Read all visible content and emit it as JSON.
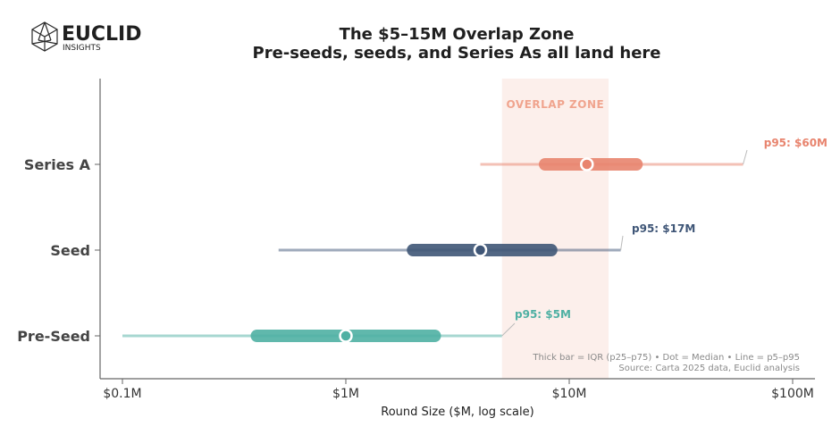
{
  "brand": {
    "name": "EUCLID",
    "tagline": "INSIGHTS"
  },
  "colors": {
    "series_a": "#e8846e",
    "seed": "#3f5677",
    "pre_seed": "#4fb0a3",
    "zone_fill": "#fcefeb",
    "zone_text": "#f0a48e",
    "axis": "#666666"
  },
  "chart_data": {
    "type": "range",
    "title": [
      "The $5–15M Overlap Zone",
      "Pre-seeds, seeds, and Series As all land here"
    ],
    "xlabel": "Round Size ($M, log scale)",
    "ylabel": "",
    "xscale": "log",
    "xlim": [
      0.08,
      115
    ],
    "x_ticks": [
      0.1,
      1,
      10,
      100
    ],
    "x_tick_labels": [
      "$0.1M",
      "$1M",
      "$10M",
      "$100M"
    ],
    "overlap_zone": {
      "range": [
        5,
        15
      ],
      "label": "OVERLAP ZONE"
    },
    "series": [
      {
        "name": "Series A",
        "p5": 4,
        "p25": 7.8,
        "median": 12,
        "p75": 20,
        "p95": 60,
        "p95_label": "p95: $60M",
        "color": "#e8846e"
      },
      {
        "name": "Seed",
        "p5": 0.5,
        "p25": 2,
        "median": 4,
        "p75": 8.3,
        "p95": 17,
        "p95_label": "p95: $17M",
        "color": "#3f5677"
      },
      {
        "name": "Pre-Seed",
        "p5": 0.1,
        "p25": 0.4,
        "median": 1,
        "p75": 2.5,
        "p95": 5,
        "p95_label": "p95: $5M",
        "color": "#4fb0a3"
      }
    ],
    "legend_note": "Thick bar = IQR (p25–p75)  •  Dot = Median  •  Line = p5–p95",
    "source": "Source: Carta 2025 data, Euclid analysis"
  }
}
